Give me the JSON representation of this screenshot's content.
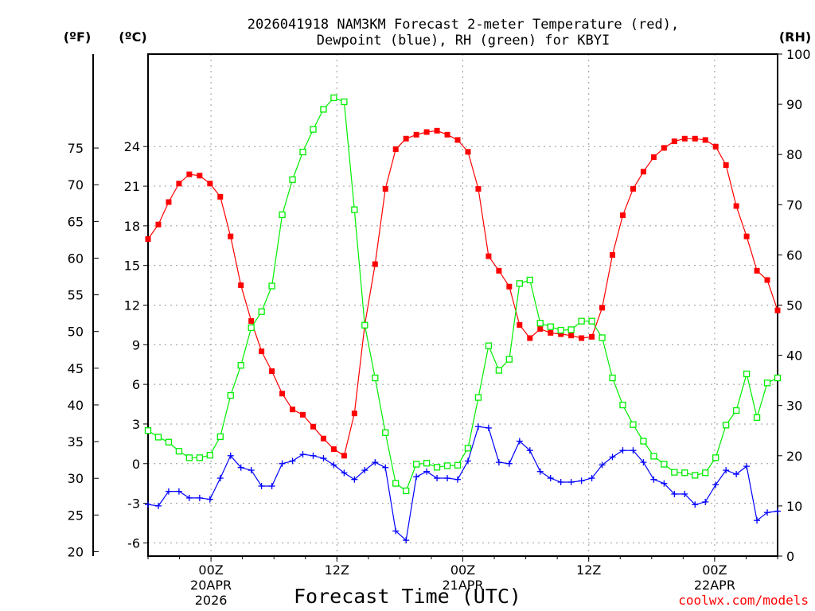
{
  "chart_data": {
    "type": "line",
    "title_line1": "2026041918 NAM3KM Forecast 2-meter Temperature (red),",
    "title_line2": "Dewpoint (blue), RH (green) for KBYI",
    "xlabel": "Forecast Time (UTC)",
    "credit": "coolwx.com/models",
    "unit_f": "(ºF)",
    "unit_c": "(ºC)",
    "unit_rh": "(RH)",
    "x_range_hours": [
      0,
      60
    ],
    "x_ticks": [
      {
        "hour": 6,
        "label": "00Z",
        "date": "20APR",
        "year": "2026"
      },
      {
        "hour": 18,
        "label": "12Z",
        "date": "",
        "year": ""
      },
      {
        "hour": 30,
        "label": "00Z",
        "date": "21APR",
        "year": ""
      },
      {
        "hour": 42,
        "label": "12Z",
        "date": "",
        "year": ""
      },
      {
        "hour": 54,
        "label": "00Z",
        "date": "22APR",
        "year": ""
      }
    ],
    "ylim_c": [
      -7,
      31
    ],
    "yticks_c": [
      "-6",
      "-3",
      "0",
      "3",
      "6",
      "9",
      "12",
      "15",
      "18",
      "21",
      "24"
    ],
    "yticks_f": [
      "20",
      "25",
      "30",
      "35",
      "40",
      "45",
      "50",
      "55",
      "60",
      "65",
      "70",
      "75"
    ],
    "ylim_rh": [
      0,
      100
    ],
    "yticks_rh": [
      "0",
      "10",
      "20",
      "30",
      "40",
      "50",
      "60",
      "70",
      "80",
      "90",
      "100"
    ],
    "series": [
      {
        "name": "2-meter Temperature",
        "color": "#ff0000",
        "marker": "filled-square",
        "axis": "celsius",
        "values": [
          17.0,
          18.1,
          19.8,
          21.2,
          21.9,
          21.8,
          21.2,
          20.2,
          17.2,
          13.5,
          10.8,
          8.5,
          7.0,
          5.3,
          4.1,
          3.7,
          2.8,
          1.9,
          1.1,
          0.6,
          3.8,
          10.5,
          15.1,
          20.8,
          23.8,
          24.6,
          24.9,
          25.1,
          25.2,
          24.9,
          24.5,
          23.6,
          20.8,
          15.7,
          14.6,
          13.4,
          10.5,
          9.5,
          10.2,
          9.9,
          9.8,
          9.7,
          9.5,
          9.6,
          11.8,
          15.8,
          18.8,
          20.8,
          22.1,
          23.2,
          23.9,
          24.4,
          24.6,
          24.6,
          24.5,
          24.0,
          22.6,
          19.5,
          17.2,
          14.6,
          13.9,
          11.6
        ]
      },
      {
        "name": "Dewpoint",
        "color": "#0000ff",
        "marker": "plus",
        "axis": "celsius",
        "values": [
          -3.1,
          -3.2,
          -2.1,
          -2.1,
          -2.6,
          -2.6,
          -2.7,
          -1.1,
          0.6,
          -0.3,
          -0.5,
          -1.7,
          -1.7,
          0.0,
          0.2,
          0.7,
          0.6,
          0.4,
          -0.1,
          -0.7,
          -1.2,
          -0.5,
          0.1,
          -0.3,
          -5.1,
          -5.8,
          -1.0,
          -0.6,
          -1.1,
          -1.1,
          -1.2,
          0.2,
          2.8,
          2.7,
          0.1,
          0.0,
          1.7,
          1.0,
          -0.6,
          -1.1,
          -1.4,
          -1.4,
          -1.3,
          -1.1,
          -0.1,
          0.5,
          1.0,
          1.0,
          0.1,
          -1.2,
          -1.5,
          -2.3,
          -2.3,
          -3.1,
          -2.9,
          -1.6,
          -0.5,
          -0.8,
          -0.2,
          -4.3,
          -3.7,
          -3.6
        ]
      },
      {
        "name": "RH",
        "color": "#00ee00",
        "marker": "open-square",
        "axis": "rh",
        "values": [
          25,
          23.7,
          22.7,
          20.9,
          19.6,
          19.6,
          20.1,
          23.8,
          32,
          38,
          45.5,
          48.7,
          53.8,
          68,
          75,
          80.5,
          85,
          89,
          91.3,
          90.5,
          69,
          46,
          35.5,
          24.6,
          14.5,
          13,
          18.3,
          18.5,
          17.7,
          18,
          18.1,
          21.5,
          31.6,
          41.9,
          37,
          39.2,
          54.3,
          55,
          46.4,
          45.7,
          45,
          45.1,
          46.8,
          46.8,
          43.5,
          35.5,
          30.1,
          26.2,
          22.9,
          19.9,
          18.3,
          16.7,
          16.6,
          16.1,
          16.6,
          19.6,
          26.1,
          29,
          36.3,
          27.6,
          34.5,
          35.5
        ]
      }
    ]
  }
}
